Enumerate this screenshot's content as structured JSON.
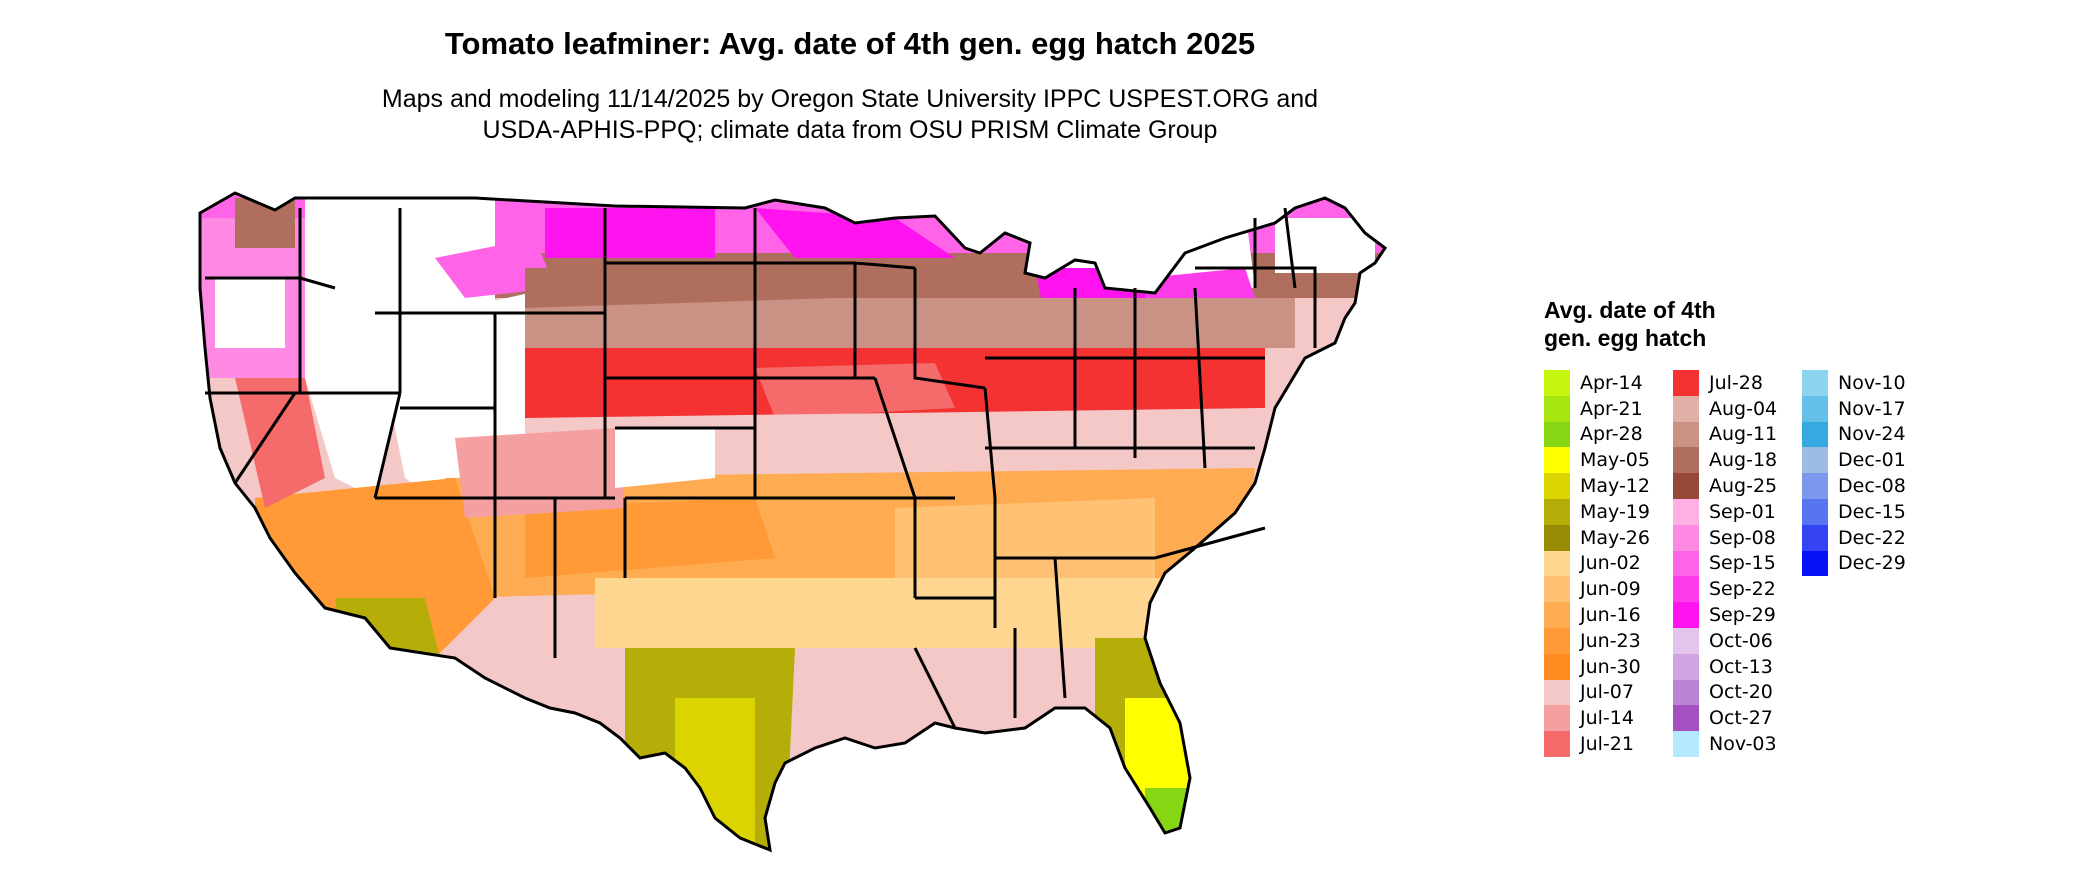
{
  "title": "Tomato leafminer: Avg. date of 4th gen. egg hatch 2025",
  "subtitle_line1": "Maps and modeling 11/14/2025 by Oregon State University IPPC USPEST.ORG and",
  "subtitle_line2": "USDA-APHIS-PPQ; climate data from OSU PRISM Climate Group",
  "legend": {
    "title": "Avg. date of 4th gen. egg hatch",
    "columns": [
      [
        {
          "label": "Apr-14",
          "color": "#c6f50f"
        },
        {
          "label": "Apr-21",
          "color": "#a6e50f"
        },
        {
          "label": "Apr-28",
          "color": "#86d614"
        },
        {
          "label": "May-05",
          "color": "#ffff00"
        },
        {
          "label": "May-12",
          "color": "#dcd400"
        },
        {
          "label": "May-19",
          "color": "#b6ae08"
        },
        {
          "label": "May-26",
          "color": "#978b06"
        },
        {
          "label": "Jun-02",
          "color": "#ffd68f"
        },
        {
          "label": "Jun-09",
          "color": "#ffc275"
        },
        {
          "label": "Jun-16",
          "color": "#ffab52"
        },
        {
          "label": "Jun-23",
          "color": "#ff9a36"
        },
        {
          "label": "Jun-30",
          "color": "#ff8a1f"
        },
        {
          "label": "Jul-07",
          "color": "#f5c8c8"
        },
        {
          "label": "Jul-14",
          "color": "#f5a0a0"
        },
        {
          "label": "Jul-21",
          "color": "#f56a6a"
        }
      ],
      [
        {
          "label": "Jul-28",
          "color": "#f53232"
        },
        {
          "label": "Aug-04",
          "color": "#e0b0a6"
        },
        {
          "label": "Aug-11",
          "color": "#c99285"
        },
        {
          "label": "Aug-18",
          "color": "#b06e5e"
        },
        {
          "label": "Aug-25",
          "color": "#984838"
        },
        {
          "label": "Sep-01",
          "color": "#ffb0e4"
        },
        {
          "label": "Sep-08",
          "color": "#ff8ae4"
        },
        {
          "label": "Sep-15",
          "color": "#ff64e8"
        },
        {
          "label": "Sep-22",
          "color": "#ff3cec"
        },
        {
          "label": "Sep-29",
          "color": "#ff14f0"
        },
        {
          "label": "Oct-06",
          "color": "#e4c4ec"
        },
        {
          "label": "Oct-13",
          "color": "#d0a4e0"
        },
        {
          "label": "Oct-20",
          "color": "#bc84d4"
        },
        {
          "label": "Oct-27",
          "color": "#a450c0"
        },
        {
          "label": "Nov-03",
          "color": "#b4e8ff"
        }
      ],
      [
        {
          "label": "Nov-10",
          "color": "#8cd4f0"
        },
        {
          "label": "Nov-17",
          "color": "#64c0e8"
        },
        {
          "label": "Nov-24",
          "color": "#36aae0"
        },
        {
          "label": "Dec-01",
          "color": "#9cbce4"
        },
        {
          "label": "Dec-08",
          "color": "#7c98ec"
        },
        {
          "label": "Dec-15",
          "color": "#5874f0"
        },
        {
          "label": "Dec-22",
          "color": "#3444f4"
        },
        {
          "label": "Dec-29",
          "color": "#0810f8"
        }
      ]
    ]
  }
}
